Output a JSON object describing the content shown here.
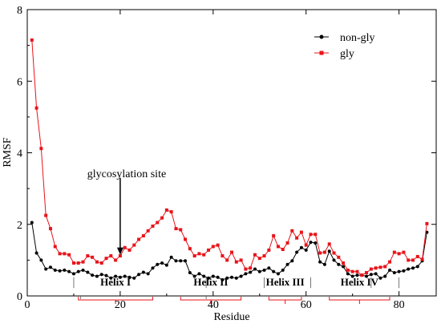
{
  "chart_data": {
    "type": "line",
    "xlabel": "Residue",
    "ylabel": "RMSF",
    "xlim": [
      0,
      88
    ],
    "ylim": [
      0,
      8
    ],
    "x_ticks": [
      0,
      20,
      40,
      60,
      80
    ],
    "y_ticks": [
      0,
      2,
      4,
      6,
      8
    ],
    "grid": false,
    "legend_position": "top-right",
    "x": [
      1,
      2,
      3,
      4,
      5,
      6,
      7,
      8,
      9,
      10,
      11,
      12,
      13,
      14,
      15,
      16,
      17,
      18,
      19,
      20,
      21,
      22,
      23,
      24,
      25,
      26,
      27,
      28,
      29,
      30,
      31,
      32,
      33,
      34,
      35,
      36,
      37,
      38,
      39,
      40,
      41,
      42,
      43,
      44,
      45,
      46,
      47,
      48,
      49,
      50,
      51,
      52,
      53,
      54,
      55,
      56,
      57,
      58,
      59,
      60,
      61,
      62,
      63,
      64,
      65,
      66,
      67,
      68,
      69,
      70,
      71,
      72,
      73,
      74,
      75,
      76,
      77,
      78,
      79,
      80,
      81,
      82,
      83,
      84,
      85,
      86
    ],
    "series": [
      {
        "name": "non-gly",
        "color": "#000000",
        "marker": "circle",
        "values": [
          2.05,
          1.2,
          1.0,
          0.75,
          0.8,
          0.72,
          0.7,
          0.72,
          0.68,
          0.62,
          0.68,
          0.72,
          0.66,
          0.58,
          0.55,
          0.6,
          0.57,
          0.5,
          0.55,
          0.52,
          0.55,
          0.52,
          0.5,
          0.6,
          0.66,
          0.62,
          0.78,
          0.88,
          0.92,
          0.86,
          1.08,
          0.98,
          0.98,
          0.98,
          0.65,
          0.55,
          0.62,
          0.55,
          0.5,
          0.55,
          0.52,
          0.45,
          0.5,
          0.52,
          0.5,
          0.55,
          0.62,
          0.66,
          0.75,
          0.68,
          0.72,
          0.78,
          0.68,
          0.62,
          0.72,
          0.88,
          0.98,
          1.22,
          1.35,
          1.28,
          1.5,
          1.48,
          0.95,
          0.88,
          1.25,
          1.0,
          0.88,
          0.82,
          0.62,
          0.55,
          0.58,
          0.58,
          0.55,
          0.6,
          0.62,
          0.5,
          0.55,
          0.72,
          0.65,
          0.68,
          0.7,
          0.75,
          0.78,
          0.82,
          0.98,
          1.78
        ]
      },
      {
        "name": "gly",
        "color": "#e8141a",
        "marker": "square",
        "values": [
          7.15,
          5.25,
          4.12,
          2.25,
          1.88,
          1.38,
          1.18,
          1.18,
          1.15,
          0.92,
          0.92,
          0.95,
          1.12,
          1.08,
          0.95,
          0.92,
          1.05,
          1.12,
          1.0,
          1.12,
          1.35,
          1.28,
          1.42,
          1.58,
          1.68,
          1.82,
          1.95,
          2.05,
          2.18,
          2.4,
          2.35,
          1.88,
          1.85,
          1.58,
          1.32,
          1.12,
          1.18,
          1.15,
          1.28,
          1.38,
          1.42,
          1.12,
          1.0,
          1.22,
          0.95,
          1.0,
          0.75,
          0.78,
          1.15,
          1.05,
          1.12,
          1.28,
          1.68,
          1.38,
          1.3,
          1.48,
          1.82,
          1.62,
          1.78,
          1.42,
          1.72,
          1.72,
          1.2,
          1.22,
          1.45,
          1.2,
          1.08,
          0.92,
          0.72,
          0.68,
          0.68,
          0.58,
          0.65,
          0.75,
          0.78,
          0.8,
          0.82,
          0.95,
          1.22,
          1.18,
          1.22,
          1.0,
          1.0,
          1.1,
          1.02,
          2.02
        ]
      }
    ],
    "annotations": {
      "site_label": "glycosylation site",
      "site_residue": 20,
      "site_arrow_from": 3.3,
      "site_arrow_to": 1.15,
      "helices": [
        {
          "label": "Helix I",
          "start": 11,
          "end": 27
        },
        {
          "label": "Helix II",
          "start": 33,
          "end": 46
        },
        {
          "label": "Helix III",
          "start": 52,
          "end": 59
        },
        {
          "label": "Helix IV",
          "start": 65,
          "end": 78
        }
      ],
      "helix_label_y": 0.4,
      "helix_bracket_color": "#e8141a",
      "boundary_ticks": [
        10,
        38.5,
        51,
        61,
        74,
        80
      ],
      "boundary_ticks_below": [
        11.5,
        38.5
      ]
    }
  }
}
